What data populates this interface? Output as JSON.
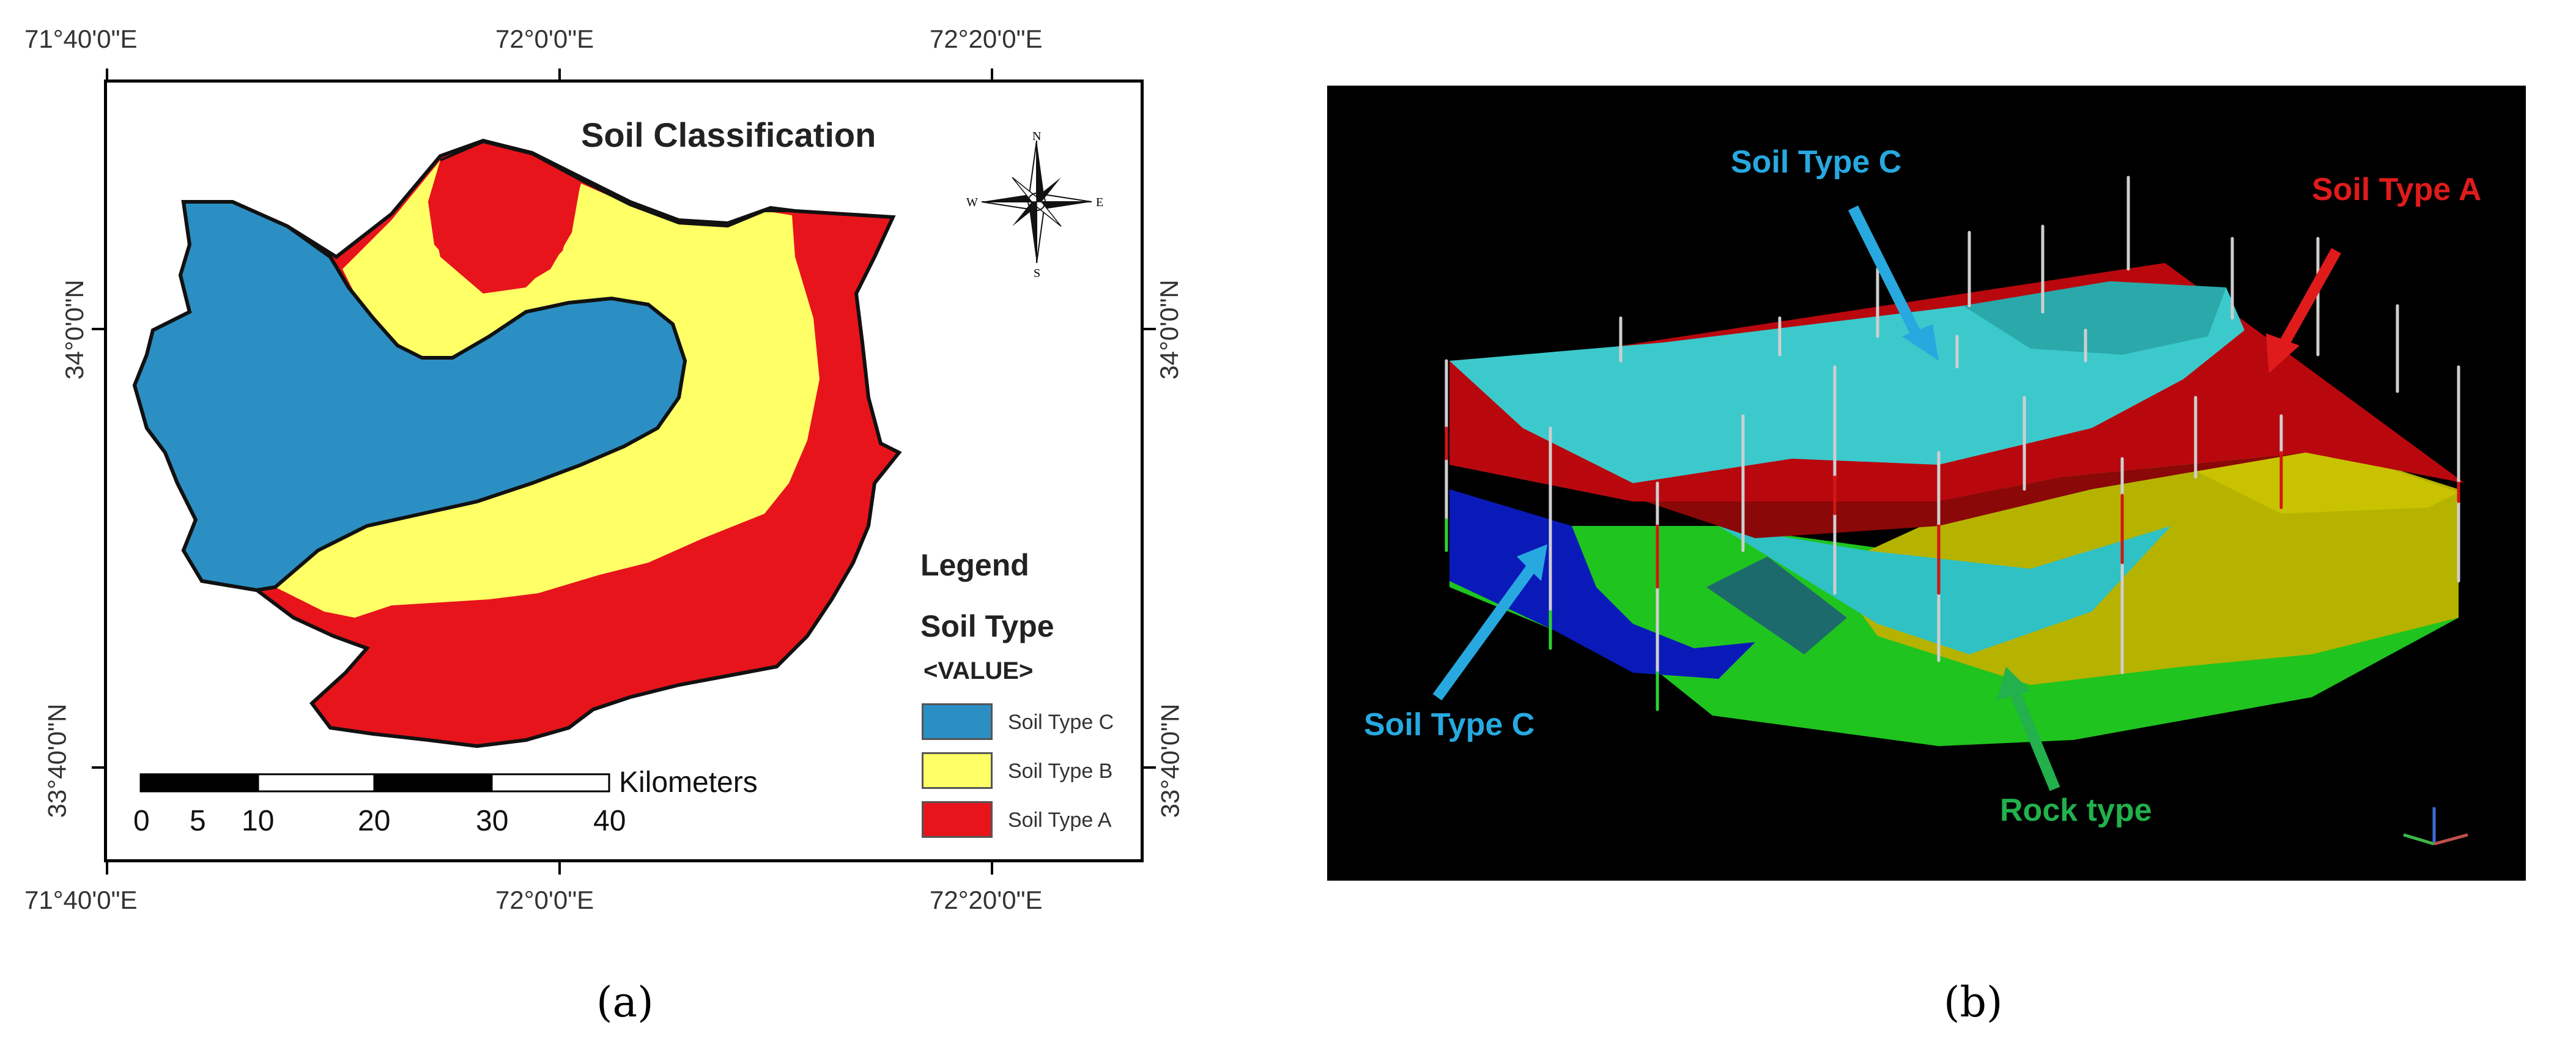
{
  "panel_a": {
    "caption": "(a)",
    "title": "Soil Classification",
    "compass": {
      "n": "N",
      "s": "S",
      "e": "E",
      "w": "W"
    },
    "coords": {
      "top": [
        "71°40'0\"E",
        "72°0'0\"E",
        "72°20'0\"E"
      ],
      "bottom": [
        "71°40'0\"E",
        "72°0'0\"E",
        "72°20'0\"E"
      ],
      "left": [
        "34°0'0\"N",
        "33°40'0\"N"
      ],
      "right": [
        "34°0'0\"N",
        "33°40'0\"N"
      ]
    },
    "legend": {
      "heading": "Legend",
      "subheading": "Soil Type",
      "value_label": "<VALUE>",
      "items": [
        {
          "label": "Soil Type C",
          "color": "#2b8fc4"
        },
        {
          "label": "Soil Type B",
          "color": "#ffff66"
        },
        {
          "label": "Soil Type A",
          "color": "#e8141c"
        }
      ]
    },
    "scale_bar": {
      "unit": "Kilometers",
      "ticks": [
        "0",
        "5",
        "10",
        "20",
        "30",
        "40"
      ]
    }
  },
  "panel_b": {
    "caption": "(b)",
    "labels": {
      "soil_c_top": {
        "text": "Soil Type C",
        "color": "#27a9e0"
      },
      "soil_a": {
        "text": "Soil Type A",
        "color": "#e01b1b"
      },
      "soil_c_bottom": {
        "text": "Soil Type C",
        "color": "#27a9e0"
      },
      "rock": {
        "text": "Rock type",
        "color": "#22b14c"
      }
    }
  }
}
